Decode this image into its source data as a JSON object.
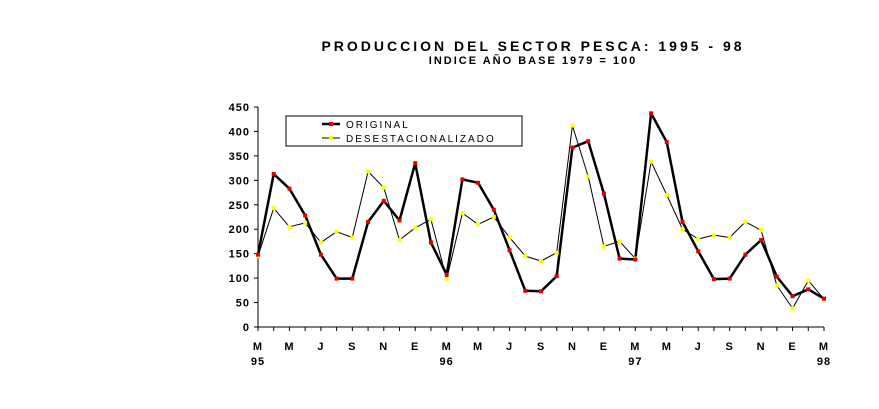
{
  "chart_data": {
    "type": "line",
    "title": "PRODUCCION DEL SECTOR PESCA: 1995 - 98",
    "subtitle": "INDICE AÑO BASE 1979 = 100",
    "ylim": [
      0,
      450
    ],
    "yticks": [
      "0",
      "50",
      "100",
      "150",
      "200",
      "250",
      "300",
      "350",
      "400",
      "450"
    ],
    "x_tick_labels": [
      {
        "i": 0,
        "month": "M",
        "year": "95"
      },
      {
        "i": 2,
        "month": "M",
        "year": ""
      },
      {
        "i": 4,
        "month": "J",
        "year": ""
      },
      {
        "i": 6,
        "month": "S",
        "year": ""
      },
      {
        "i": 8,
        "month": "N",
        "year": ""
      },
      {
        "i": 10,
        "month": "E",
        "year": ""
      },
      {
        "i": 12,
        "month": "M",
        "year": "96"
      },
      {
        "i": 14,
        "month": "M",
        "year": ""
      },
      {
        "i": 16,
        "month": "J",
        "year": ""
      },
      {
        "i": 18,
        "month": "S",
        "year": ""
      },
      {
        "i": 20,
        "month": "N",
        "year": ""
      },
      {
        "i": 22,
        "month": "E",
        "year": ""
      },
      {
        "i": 24,
        "month": "M",
        "year": "97"
      },
      {
        "i": 26,
        "month": "M",
        "year": ""
      },
      {
        "i": 28,
        "month": "J",
        "year": ""
      },
      {
        "i": 30,
        "month": "S",
        "year": ""
      },
      {
        "i": 32,
        "month": "N",
        "year": ""
      },
      {
        "i": 34,
        "month": "E",
        "year": ""
      },
      {
        "i": 36,
        "month": "M",
        "year": "98"
      }
    ],
    "series": [
      {
        "name": "ORIGINAL",
        "color": "#000000",
        "marker_color": "#e00000",
        "values": [
          148,
          313,
          283,
          228,
          148,
          99,
          99,
          215,
          258,
          218,
          335,
          173,
          107,
          302,
          295,
          240,
          157,
          74,
          73,
          104,
          367,
          380,
          273,
          140,
          138,
          437,
          378,
          215,
          155,
          98,
          99,
          148,
          178,
          103,
          63,
          77,
          58
        ]
      },
      {
        "name": "DESESTACIONALIZADO",
        "color": "#000000",
        "marker_color": "#ffff00",
        "values": [
          145,
          243,
          205,
          213,
          173,
          195,
          183,
          318,
          285,
          178,
          203,
          220,
          98,
          233,
          210,
          225,
          183,
          145,
          135,
          152,
          412,
          308,
          165,
          175,
          140,
          338,
          270,
          200,
          180,
          188,
          183,
          215,
          198,
          85,
          38,
          95,
          57
        ]
      }
    ]
  }
}
